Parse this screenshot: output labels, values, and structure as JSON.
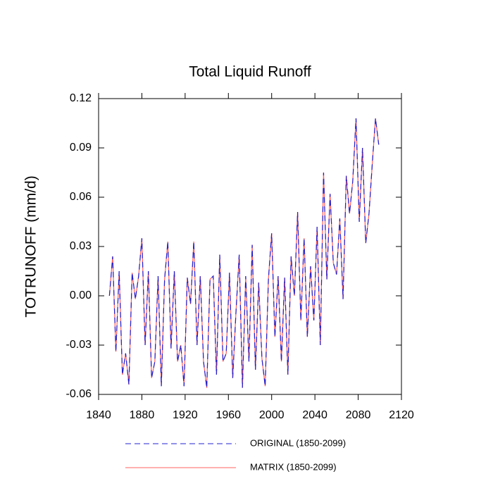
{
  "chart_data": {
    "type": "line",
    "title": "Total Liquid Runoff",
    "y_label": "TOTRUNOFF  (mm/d)",
    "x": [
      1850,
      1853,
      1856,
      1859,
      1862,
      1865,
      1868,
      1871,
      1874,
      1877,
      1880,
      1883,
      1886,
      1889,
      1892,
      1895,
      1898,
      1901,
      1904,
      1907,
      1910,
      1913,
      1916,
      1919,
      1922,
      1925,
      1928,
      1931,
      1934,
      1937,
      1940,
      1943,
      1946,
      1949,
      1952,
      1955,
      1958,
      1961,
      1964,
      1967,
      1970,
      1973,
      1976,
      1979,
      1982,
      1985,
      1988,
      1991,
      1994,
      1997,
      2000,
      2003,
      2006,
      2009,
      2012,
      2015,
      2018,
      2021,
      2024,
      2027,
      2030,
      2033,
      2036,
      2039,
      2042,
      2045,
      2048,
      2051,
      2054,
      2057,
      2060,
      2063,
      2066,
      2069,
      2072,
      2075,
      2078,
      2081,
      2084,
      2087,
      2090,
      2093,
      2096,
      2099
    ],
    "series": [
      {
        "name": "MATRIX (1850-2099)",
        "color": "#ff6060",
        "dash": false,
        "values": [
          0.0,
          0.024,
          -0.034,
          0.015,
          -0.048,
          -0.035,
          -0.054,
          0.014,
          -0.002,
          0.012,
          0.035,
          -0.03,
          0.015,
          -0.05,
          -0.04,
          0.012,
          -0.055,
          0.01,
          0.033,
          -0.032,
          0.015,
          -0.04,
          -0.03,
          -0.055,
          0.011,
          -0.005,
          0.033,
          -0.03,
          0.012,
          -0.04,
          -0.056,
          0.01,
          0.012,
          -0.048,
          0.025,
          -0.04,
          -0.035,
          0.014,
          -0.05,
          -0.01,
          0.025,
          -0.056,
          0.012,
          -0.04,
          0.031,
          -0.045,
          0.008,
          -0.038,
          -0.055,
          0.01,
          0.038,
          -0.025,
          0.012,
          -0.04,
          0.011,
          -0.048,
          0.024,
          0.0,
          0.051,
          -0.015,
          0.035,
          -0.025,
          0.018,
          -0.015,
          0.042,
          -0.03,
          0.075,
          0.01,
          0.062,
          0.02,
          0.013,
          0.047,
          -0.002,
          0.073,
          0.05,
          0.07,
          0.108,
          0.045,
          0.09,
          0.032,
          0.05,
          0.08,
          0.108,
          0.092
        ]
      },
      {
        "name": "ORIGINAL (1850-2099)",
        "color": "#2020d0",
        "dash": true,
        "values": [
          0.0,
          0.024,
          -0.034,
          0.015,
          -0.048,
          -0.035,
          -0.054,
          0.014,
          -0.002,
          0.012,
          0.035,
          -0.03,
          0.015,
          -0.05,
          -0.04,
          0.012,
          -0.055,
          0.01,
          0.033,
          -0.032,
          0.015,
          -0.04,
          -0.03,
          -0.055,
          0.011,
          -0.005,
          0.033,
          -0.03,
          0.012,
          -0.04,
          -0.056,
          0.01,
          0.012,
          -0.048,
          0.025,
          -0.04,
          -0.035,
          0.014,
          -0.05,
          -0.01,
          0.025,
          -0.056,
          0.012,
          -0.04,
          0.031,
          -0.045,
          0.008,
          -0.038,
          -0.055,
          0.01,
          0.038,
          -0.025,
          0.012,
          -0.04,
          0.011,
          -0.048,
          0.024,
          0.0,
          0.051,
          -0.015,
          0.035,
          -0.025,
          0.018,
          -0.015,
          0.042,
          -0.03,
          0.075,
          0.01,
          0.062,
          0.02,
          0.013,
          0.047,
          -0.002,
          0.073,
          0.05,
          0.07,
          0.108,
          0.045,
          0.09,
          0.032,
          0.05,
          0.08,
          0.108,
          0.092
        ]
      }
    ],
    "xlim": [
      1840,
      2120
    ],
    "xticks": [
      1840,
      1880,
      1920,
      1960,
      2000,
      2040,
      2080,
      2120
    ],
    "ylim": [
      -0.06,
      0.12
    ],
    "yticks": [
      -0.06,
      -0.03,
      {
        "value": 0,
        "label": "0.00"
      },
      0.03,
      0.06,
      0.09,
      0.12
    ],
    "grid": false
  }
}
